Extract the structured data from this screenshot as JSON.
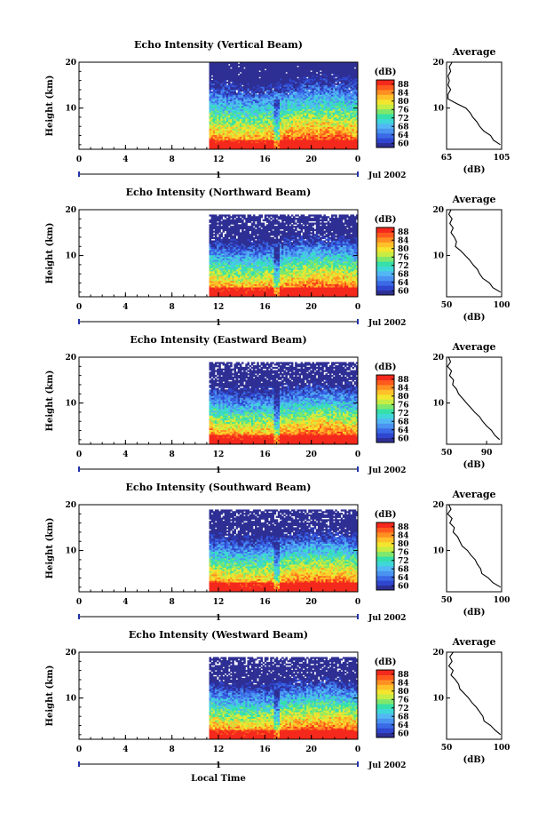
{
  "figure": {
    "xlabel": "Local Time",
    "date_label": "Jul 2002",
    "day_label": "1",
    "ylabel": "Height (km)",
    "avg_title": "Average",
    "avg_xlabel": "(dB)",
    "colorbar_label": "(dB)"
  },
  "colors": {
    "colorbar": [
      "#2e2f94",
      "#2f46cf",
      "#3b6ae6",
      "#4a93f0",
      "#53b7f5",
      "#3fd7d8",
      "#36e0a9",
      "#7ee86d",
      "#c7ec43",
      "#f4e52e",
      "#ffc02a",
      "#ff8f22",
      "#ff5a1d",
      "#f4291c"
    ]
  },
  "chart_data": [
    {
      "type": "heatmap",
      "title": "Echo Intensity (Vertical Beam)",
      "x_ticks": [
        "0",
        "4",
        "8",
        "12",
        "16",
        "20",
        "0"
      ],
      "xlim": [
        0,
        24
      ],
      "y_ticks": [
        "20",
        "10"
      ],
      "ylim": [
        1,
        20
      ],
      "data_start_hour": 11.2,
      "colorbar_ticks": [
        "88",
        "84",
        "80",
        "76",
        "72",
        "68",
        "64",
        "60"
      ],
      "colorbar_range": [
        58,
        90
      ],
      "average_profile": {
        "x_ticks": [
          "65",
          "105"
        ],
        "xlim": [
          65,
          105
        ],
        "ylim": [
          1,
          20
        ],
        "height_km": [
          20,
          19,
          18,
          17,
          16,
          15,
          14,
          13,
          12,
          11,
          10,
          9,
          8,
          7,
          6,
          5,
          4,
          3,
          2
        ],
        "db": [
          69,
          67,
          68,
          66,
          67,
          66,
          68,
          66,
          66,
          72,
          79,
          82,
          84,
          87,
          89,
          92,
          97,
          99,
          104
        ]
      }
    },
    {
      "type": "heatmap",
      "title": "Echo Intensity (Northward Beam)",
      "x_ticks": [
        "0",
        "4",
        "8",
        "12",
        "16",
        "20",
        "0"
      ],
      "xlim": [
        0,
        24
      ],
      "y_ticks": [
        "20",
        "10"
      ],
      "ylim": [
        1,
        20
      ],
      "data_start_hour": 11.2,
      "colorbar_ticks": [
        "88",
        "84",
        "80",
        "76",
        "72",
        "68",
        "64",
        "60"
      ],
      "colorbar_range": [
        58,
        90
      ],
      "average_profile": {
        "x_ticks": [
          "50",
          "100"
        ],
        "xlim": [
          50,
          100
        ],
        "ylim": [
          1,
          20
        ],
        "height_km": [
          20,
          19,
          18,
          17,
          16,
          15,
          14,
          13,
          12,
          11,
          10,
          9,
          8,
          7,
          6,
          5,
          4,
          3,
          2
        ],
        "db": [
          54,
          52,
          55,
          53,
          56,
          54,
          57,
          59,
          58,
          63,
          67,
          71,
          74,
          78,
          80,
          83,
          89,
          92,
          99
        ]
      }
    },
    {
      "type": "heatmap",
      "title": "Echo Intensity (Eastward Beam)",
      "x_ticks": [
        "0",
        "4",
        "8",
        "12",
        "16",
        "20",
        "0"
      ],
      "xlim": [
        0,
        24
      ],
      "y_ticks": [
        "20",
        "10"
      ],
      "ylim": [
        1,
        20
      ],
      "data_start_hour": 11.2,
      "colorbar_ticks": [
        "88",
        "84",
        "80",
        "76",
        "72",
        "68",
        "64",
        "60"
      ],
      "colorbar_range": [
        58,
        90
      ],
      "average_profile": {
        "x_ticks": [
          "50",
          "90"
        ],
        "xlim": [
          50,
          105
        ],
        "ylim": [
          1,
          20
        ],
        "height_km": [
          20,
          19,
          18,
          17,
          16,
          15,
          14,
          13,
          12,
          11,
          10,
          9,
          8,
          7,
          6,
          5,
          4,
          3,
          2
        ],
        "db": [
          52,
          54,
          51,
          55,
          53,
          57,
          56,
          60,
          62,
          66,
          70,
          74,
          78,
          83,
          86,
          90,
          95,
          98,
          103
        ]
      }
    },
    {
      "type": "heatmap",
      "title": "Echo Intensity (Southward Beam)",
      "x_ticks": [
        "0",
        "4",
        "8",
        "12",
        "16",
        "20",
        "0"
      ],
      "xlim": [
        0,
        24
      ],
      "y_ticks": [
        "20",
        "10"
      ],
      "ylim": [
        1,
        20
      ],
      "data_start_hour": 11.2,
      "colorbar_ticks": [
        "88",
        "84",
        "80",
        "76",
        "72",
        "68",
        "64",
        "60"
      ],
      "colorbar_range": [
        58,
        90
      ],
      "average_profile": {
        "x_ticks": [
          "50",
          "100"
        ],
        "xlim": [
          50,
          100
        ],
        "ylim": [
          1,
          20
        ],
        "height_km": [
          20,
          19,
          18,
          17,
          16,
          15,
          14,
          13,
          12,
          11,
          10,
          9,
          8,
          7,
          6,
          5,
          4,
          3,
          2
        ],
        "db": [
          52,
          54,
          51,
          55,
          53,
          57,
          56,
          60,
          62,
          64,
          69,
          72,
          76,
          78,
          81,
          82,
          88,
          92,
          99
        ]
      }
    },
    {
      "type": "heatmap",
      "title": "Echo Intensity (Westward Beam)",
      "x_ticks": [
        "0",
        "4",
        "8",
        "12",
        "16",
        "20",
        "0"
      ],
      "xlim": [
        0,
        24
      ],
      "y_ticks": [
        "20",
        "10"
      ],
      "ylim": [
        1,
        20
      ],
      "data_start_hour": 11.2,
      "colorbar_ticks": [
        "88",
        "84",
        "80",
        "76",
        "72",
        "68",
        "64",
        "60"
      ],
      "colorbar_range": [
        58,
        90
      ],
      "average_profile": {
        "x_ticks": [
          "50",
          "100"
        ],
        "xlim": [
          50,
          100
        ],
        "ylim": [
          1,
          20
        ],
        "height_km": [
          20,
          19,
          18,
          17,
          16,
          15,
          14,
          13,
          12,
          11,
          10,
          9,
          8,
          7,
          6,
          5,
          4,
          3,
          2
        ],
        "db": [
          56,
          53,
          55,
          52,
          56,
          54,
          58,
          61,
          62,
          66,
          70,
          73,
          77,
          80,
          83,
          84,
          90,
          94,
          99
        ]
      }
    }
  ]
}
